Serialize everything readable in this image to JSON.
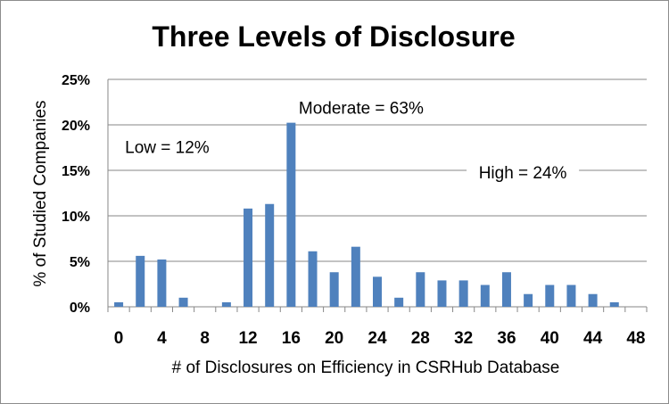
{
  "chart_data": {
    "type": "bar",
    "title": "Three Levels of Disclosure",
    "xlabel": "# of Disclosures on Efficiency in CSRHub Database",
    "ylabel": "% of Studied Companies",
    "ylim": [
      0,
      25
    ],
    "yticks": [
      "0%",
      "5%",
      "10%",
      "15%",
      "20%",
      "25%"
    ],
    "xticks": [
      "0",
      "4",
      "8",
      "12",
      "16",
      "20",
      "24",
      "28",
      "32",
      "36",
      "40",
      "44",
      "48"
    ],
    "grid": true,
    "bar_color": "#4f81bd",
    "x": [
      0,
      2,
      4,
      6,
      8,
      10,
      12,
      14,
      16,
      18,
      20,
      22,
      24,
      26,
      28,
      30,
      32,
      34,
      36,
      38,
      40,
      42,
      44,
      46,
      48
    ],
    "values": [
      0.5,
      5.6,
      5.2,
      1.0,
      0,
      0.5,
      10.8,
      11.3,
      21.1,
      6.1,
      3.8,
      6.6,
      3.3,
      1.0,
      3.8,
      2.9,
      2.9,
      2.4,
      3.8,
      1.4,
      2.4,
      2.4,
      1.4,
      0.5,
      0
    ],
    "annotations": [
      {
        "text": "Low = 12%",
        "x": 4.5,
        "y": 17.6
      },
      {
        "text": "Moderate = 63%",
        "x": 22.5,
        "y": 21.9
      },
      {
        "text": "High = 24%",
        "x": 37.5,
        "y": 14.8
      }
    ]
  }
}
